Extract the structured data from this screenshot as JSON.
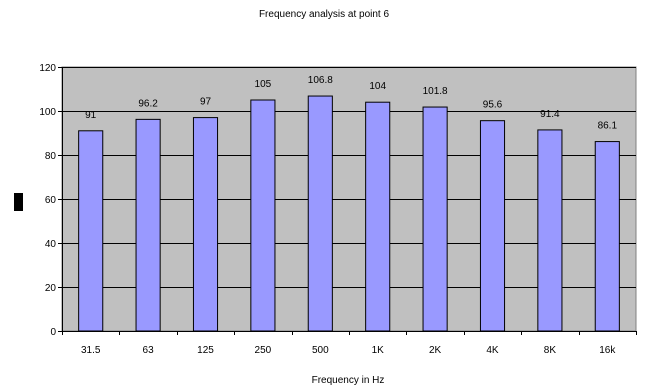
{
  "chart_data": {
    "type": "bar",
    "title": "Frequency analysis at point 6",
    "xlabel": "Frequency in Hz",
    "ylabel": "",
    "ylim": [
      0,
      120
    ],
    "yticks": [
      0,
      20,
      40,
      60,
      80,
      100,
      120
    ],
    "grid": true,
    "legend": "none",
    "categories": [
      "31.5",
      "63",
      "125",
      "250",
      "500",
      "1K",
      "2K",
      "4K",
      "8K",
      "16k"
    ],
    "values": [
      91,
      96.2,
      97,
      105,
      106.8,
      104,
      101.8,
      95.6,
      91.4,
      86.1
    ],
    "data_labels": [
      "91",
      "96.2",
      "97",
      "105",
      "106.8",
      "104",
      "101.8",
      "95.6",
      "91.4",
      "86.1"
    ],
    "colors": {
      "bar_fill": "#9999ff",
      "bar_stroke": "#000000",
      "plot_background": "#c0c0c0",
      "gridline": "#000000"
    }
  }
}
